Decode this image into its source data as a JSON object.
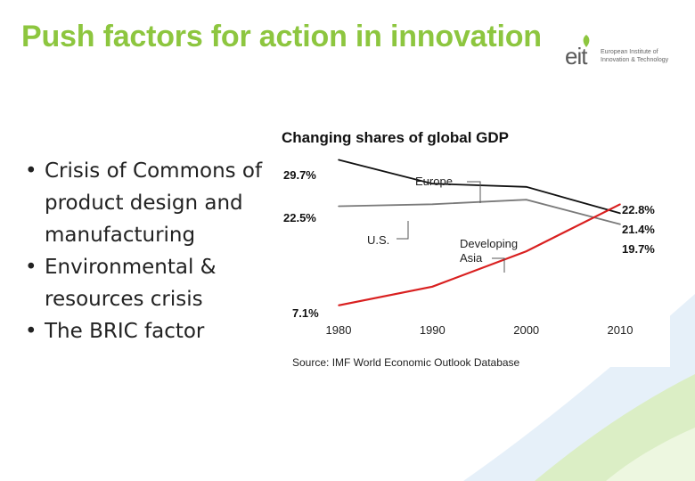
{
  "slide": {
    "title": "Push factors for action in innovation",
    "bullets": [
      "Crisis of Commons of product design and manufacturing",
      "Environmental & resources crisis",
      "The BRIC factor"
    ]
  },
  "logo": {
    "text": "eit",
    "subtitle_line1": "European Institute of",
    "subtitle_line2": "Innovation & Technology"
  },
  "colors": {
    "title": "#8dc63f",
    "europe": "#111111",
    "us": "#7a7a7a",
    "asia": "#d92020",
    "deco_green": "#cfe8a8",
    "deco_blue": "#cfe3f2"
  },
  "chart_data": {
    "type": "line",
    "title": "Changing shares of global GDP",
    "x": [
      1980,
      1990,
      2000,
      2010
    ],
    "x_tick_labels": [
      "1980",
      "1990",
      "2000",
      "2010"
    ],
    "xlim": [
      1980,
      2010
    ],
    "ylim": [
      5,
      31
    ],
    "grid": false,
    "source": "Source: IMF World Economic Outlook Database",
    "series": [
      {
        "name": "Europe",
        "label": "Europe",
        "values": [
          29.7,
          26.0,
          25.5,
          21.4
        ],
        "start_label": "29.7%",
        "end_label": "21.4%"
      },
      {
        "name": "U.S.",
        "label": "U.S.",
        "values": [
          22.5,
          22.8,
          23.5,
          19.7
        ],
        "start_label": "22.5%",
        "end_label": "19.7%"
      },
      {
        "name": "Developing Asia",
        "label_line1": "Developing",
        "label_line2": "Asia",
        "values": [
          7.1,
          10.0,
          15.5,
          22.8
        ],
        "start_label": "7.1%",
        "end_label": "22.8%"
      }
    ]
  }
}
